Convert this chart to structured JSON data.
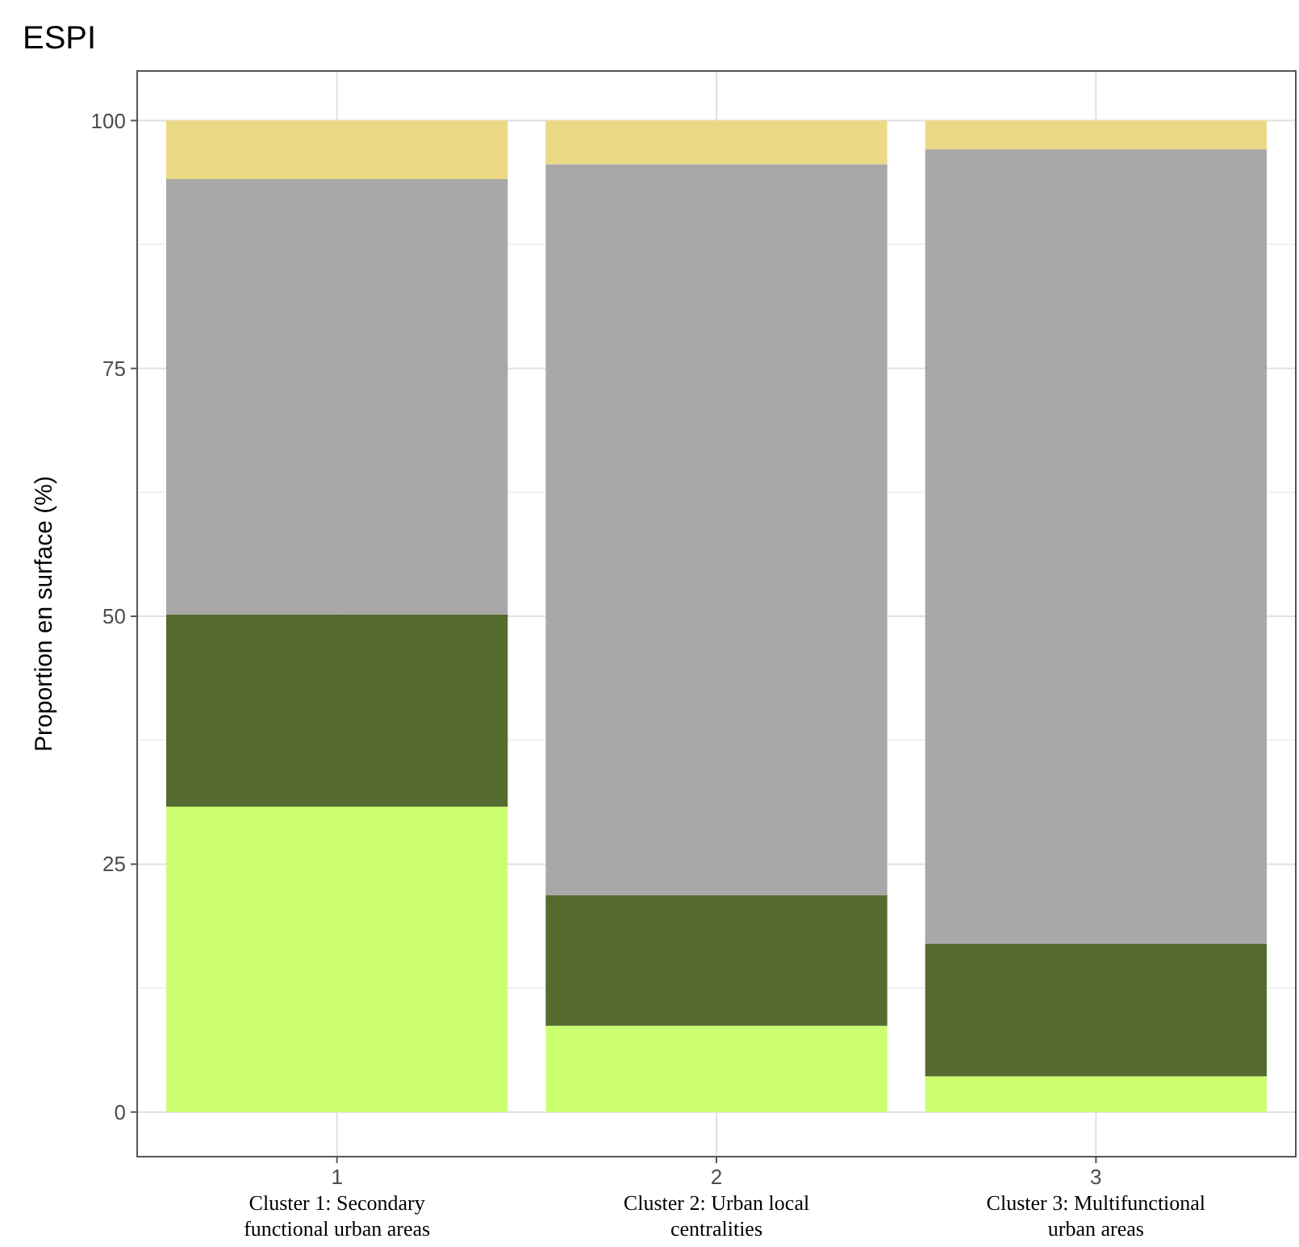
{
  "chart_data": {
    "type": "bar",
    "title": "ESPI",
    "ylabel": "Proportion en surface (%)",
    "categories": [
      "1",
      "2",
      "3"
    ],
    "stacked": true,
    "series": [
      {
        "color": "#ccff70",
        "values": [
          30.8,
          8.7,
          3.6
        ]
      },
      {
        "color": "#556b30",
        "values": [
          19.4,
          13.2,
          13.4
        ]
      },
      {
        "color": "#a8a8a8",
        "values": [
          43.9,
          73.7,
          80.1
        ]
      },
      {
        "color": "#ecd985",
        "values": [
          5.9,
          4.4,
          2.9
        ]
      }
    ],
    "ylim": [
      -4.5,
      105
    ],
    "yticks": [
      0,
      25,
      50,
      75,
      100
    ],
    "grid": true,
    "annotations": [
      "Cluster 1: Secondary functional urban areas",
      "Cluster 2: Urban local centralities",
      "Cluster 3: Multifunctional urban areas"
    ]
  }
}
